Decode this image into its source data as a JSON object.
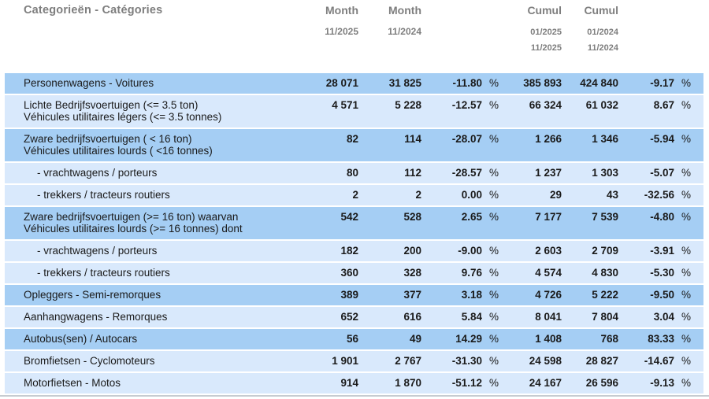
{
  "title": "Categorieën - Catégories",
  "percent_symbol": "%",
  "columns": {
    "month1": {
      "title": "Month",
      "period": "11/2025"
    },
    "month2": {
      "title": "Month",
      "period": "11/2024"
    },
    "cumul1": {
      "title": "Cumul",
      "from": "01/2025",
      "to": "11/2025"
    },
    "cumul2": {
      "title": "Cumul",
      "from": "01/2024",
      "to": "11/2024"
    }
  },
  "rows": [
    {
      "label": "Personenwagens - Voitures",
      "shade": "medium",
      "indent": false,
      "month1": "28 071",
      "month2": "31 825",
      "month_change": "-11.80",
      "cumul1": "385 893",
      "cumul2": "424 840",
      "cumul_change": "-9.17"
    },
    {
      "label": "Lichte Bedrijfsvoertuigen (<= 3.5 ton)",
      "label2": "Véhicules utilitaires légers (<= 3.5 tonnes)",
      "shade": "light",
      "indent": false,
      "month1": "4 571",
      "month2": "5 228",
      "month_change": "-12.57",
      "cumul1": "66 324",
      "cumul2": "61 032",
      "cumul_change": "8.67"
    },
    {
      "label": "Zware bedrijfsvoertuigen ( < 16 ton)",
      "label2": "Véhicules utilitaires lourds ( <16 tonnes)",
      "shade": "medium",
      "indent": false,
      "month1": "82",
      "month2": "114",
      "month_change": "-28.07",
      "cumul1": "1 266",
      "cumul2": "1 346",
      "cumul_change": "-5.94"
    },
    {
      "label": "- vrachtwagens / porteurs",
      "shade": "light",
      "indent": true,
      "month1": "80",
      "month2": "112",
      "month_change": "-28.57",
      "cumul1": "1 237",
      "cumul2": "1 303",
      "cumul_change": "-5.07"
    },
    {
      "label": "- trekkers / tracteurs routiers",
      "shade": "light",
      "indent": true,
      "month1": "2",
      "month2": "2",
      "month_change": "0.00",
      "cumul1": "29",
      "cumul2": "43",
      "cumul_change": "-32.56"
    },
    {
      "label": "Zware bedrijfsvoertuigen (>= 16 ton) waarvan",
      "label2": "Véhicules utilitaires lourds (>= 16 tonnes) dont",
      "shade": "medium",
      "indent": false,
      "month1": "542",
      "month2": "528",
      "month_change": "2.65",
      "cumul1": "7 177",
      "cumul2": "7 539",
      "cumul_change": "-4.80"
    },
    {
      "label": "- vrachtwagens / porteurs",
      "shade": "light",
      "indent": true,
      "month1": "182",
      "month2": "200",
      "month_change": "-9.00",
      "cumul1": "2 603",
      "cumul2": "2 709",
      "cumul_change": "-3.91"
    },
    {
      "label": "- trekkers / tracteurs routiers",
      "shade": "light",
      "indent": true,
      "month1": "360",
      "month2": "328",
      "month_change": "9.76",
      "cumul1": "4 574",
      "cumul2": "4 830",
      "cumul_change": "-5.30"
    },
    {
      "label": "Opleggers - Semi-remorques",
      "shade": "medium",
      "indent": false,
      "month1": "389",
      "month2": "377",
      "month_change": "3.18",
      "cumul1": "4 726",
      "cumul2": "5 222",
      "cumul_change": "-9.50"
    },
    {
      "label": "Aanhangwagens - Remorques",
      "shade": "light",
      "indent": false,
      "month1": "652",
      "month2": "616",
      "month_change": "5.84",
      "cumul1": "8 041",
      "cumul2": "7 804",
      "cumul_change": "3.04"
    },
    {
      "label": "Autobus(sen) / Autocars",
      "shade": "medium",
      "indent": false,
      "month1": "56",
      "month2": "49",
      "month_change": "14.29",
      "cumul1": "1 408",
      "cumul2": "768",
      "cumul_change": "83.33"
    },
    {
      "label": "Bromfietsen - Cyclomoteurs",
      "shade": "light",
      "indent": false,
      "month1": "1 901",
      "month2": "2 767",
      "month_change": "-31.30",
      "cumul1": "24 598",
      "cumul2": "28 827",
      "cumul_change": "-14.67"
    },
    {
      "label": "Motorfietsen - Motos",
      "shade": "light",
      "indent": false,
      "month1": "914",
      "month2": "1 870",
      "month_change": "-51.12",
      "cumul1": "24 167",
      "cumul2": "26 596",
      "cumul_change": "-9.13"
    }
  ]
}
